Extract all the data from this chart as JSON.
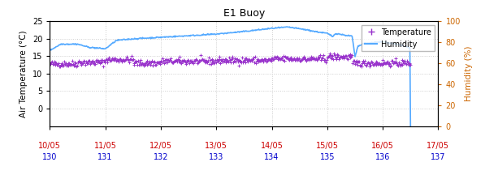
{
  "title": "E1 Buoy",
  "xlabel_dates": [
    "10/05",
    "11/05",
    "12/05",
    "13/05",
    "14/05",
    "15/05",
    "16/05",
    "17/05"
  ],
  "xlabel_days": [
    "130",
    "131",
    "132",
    "133",
    "134",
    "135",
    "136",
    "137"
  ],
  "x_tick_positions": [
    130,
    131,
    132,
    133,
    134,
    135,
    136,
    137
  ],
  "x_min": 130,
  "x_max": 137,
  "y_left_min": -5,
  "y_left_max": 25,
  "y_right_min": 0,
  "y_right_max": 100,
  "y_left_ticks": [
    0,
    5,
    10,
    15,
    20,
    25
  ],
  "y_right_ticks": [
    0,
    20,
    40,
    60,
    80,
    100
  ],
  "ylabel_left": "Air Temperature (°C)",
  "ylabel_right": "Humidity (%)",
  "temp_color": "#9933cc",
  "humidity_color": "#55aaff",
  "bg_color": "#ffffff",
  "grid_color": "#cccccc",
  "title_color": "#000000",
  "label_color_left": "#000000",
  "label_color_right": "#cc6600",
  "tick_color_dates": "#cc0000",
  "tick_color_days": "#0000cc",
  "legend_temp_label": "Temperature",
  "legend_humidity_label": "Humidity",
  "temp_marker": "+",
  "temp_markersize": 3,
  "humidity_linewidth": 1.2,
  "temp_linewidth": 0.0,
  "figsize": [
    6.13,
    2.16
  ],
  "dpi": 100
}
